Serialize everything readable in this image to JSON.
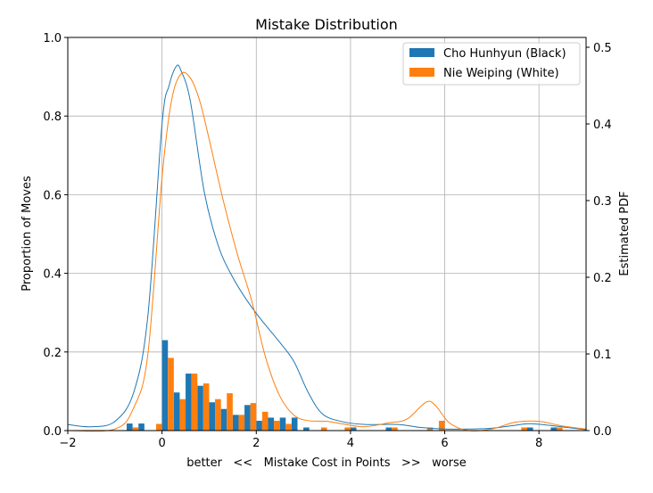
{
  "chart_data": {
    "type": "bar",
    "title": "Mistake Distribution",
    "xlabel": "better   <<   Mistake Cost in Points   >>   worse",
    "ylabel": "Proportion of Moves",
    "y2label": "Estimated PDF",
    "xlim": [
      -2,
      9
    ],
    "ylim": [
      0,
      1.0
    ],
    "y2lim": [
      0,
      0.5128
    ],
    "grid": true,
    "legend_position": "top-right",
    "x_ticks": [
      -2,
      0,
      2,
      4,
      6,
      8
    ],
    "y_ticks": [
      0.0,
      0.2,
      0.4,
      0.6,
      0.8,
      1.0
    ],
    "y2_ticks": [
      0.0,
      0.1,
      0.2,
      0.3,
      0.4,
      0.5
    ],
    "x_tick_labels": [
      "−2",
      "0",
      "2",
      "4",
      "6",
      "8"
    ],
    "y_tick_labels": [
      "0.0",
      "0.2",
      "0.4",
      "0.6",
      "0.8",
      "1.0"
    ],
    "y2_tick_labels": [
      "0.0",
      "0.1",
      "0.2",
      "0.3",
      "0.4",
      "0.5"
    ],
    "bin_width": 0.25,
    "series": [
      {
        "name": "Cho Hunhyun (Black)",
        "color": "#1f77b4",
        "bins": [
          [
            -0.75,
            0.018
          ],
          [
            -0.5,
            0.018
          ],
          [
            0.0,
            0.23
          ],
          [
            0.25,
            0.097
          ],
          [
            0.5,
            0.145
          ],
          [
            0.75,
            0.114
          ],
          [
            1.0,
            0.072
          ],
          [
            1.25,
            0.055
          ],
          [
            1.5,
            0.04
          ],
          [
            1.75,
            0.065
          ],
          [
            2.0,
            0.025
          ],
          [
            2.25,
            0.033
          ],
          [
            2.5,
            0.033
          ],
          [
            2.75,
            0.033
          ],
          [
            3.0,
            0.008
          ],
          [
            4.0,
            0.008
          ],
          [
            4.75,
            0.008
          ],
          [
            7.75,
            0.008
          ],
          [
            8.25,
            0.008
          ]
        ],
        "pdf": [
          [
            -2.0,
            0.008
          ],
          [
            -1.5,
            0.005
          ],
          [
            -1.0,
            0.012
          ],
          [
            -0.6,
            0.05
          ],
          [
            -0.3,
            0.15
          ],
          [
            0.0,
            0.4
          ],
          [
            0.15,
            0.45
          ],
          [
            0.3,
            0.475
          ],
          [
            0.4,
            0.47
          ],
          [
            0.6,
            0.43
          ],
          [
            0.9,
            0.31
          ],
          [
            1.2,
            0.24
          ],
          [
            1.5,
            0.2
          ],
          [
            1.8,
            0.17
          ],
          [
            2.1,
            0.145
          ],
          [
            2.5,
            0.115
          ],
          [
            2.8,
            0.09
          ],
          [
            3.1,
            0.05
          ],
          [
            3.4,
            0.022
          ],
          [
            3.8,
            0.012
          ],
          [
            4.3,
            0.008
          ],
          [
            5.0,
            0.008
          ],
          [
            5.5,
            0.004
          ],
          [
            6.0,
            0.002
          ],
          [
            6.5,
            0.002
          ],
          [
            7.0,
            0.003
          ],
          [
            7.5,
            0.007
          ],
          [
            7.8,
            0.009
          ],
          [
            8.2,
            0.007
          ],
          [
            9.0,
            0.001
          ]
        ]
      },
      {
        "name": "Nie Weiping (White)",
        "color": "#ff7f0e",
        "bins": [
          [
            -0.75,
            0.008
          ],
          [
            -0.25,
            0.017
          ],
          [
            0.0,
            0.185
          ],
          [
            0.25,
            0.08
          ],
          [
            0.5,
            0.145
          ],
          [
            0.75,
            0.12
          ],
          [
            1.0,
            0.08
          ],
          [
            1.25,
            0.095
          ],
          [
            1.5,
            0.04
          ],
          [
            1.75,
            0.07
          ],
          [
            2.0,
            0.048
          ],
          [
            2.25,
            0.025
          ],
          [
            2.5,
            0.017
          ],
          [
            3.25,
            0.008
          ],
          [
            3.75,
            0.008
          ],
          [
            4.75,
            0.008
          ],
          [
            5.5,
            0.008
          ],
          [
            5.75,
            0.025
          ],
          [
            7.5,
            0.008
          ],
          [
            8.25,
            0.008
          ]
        ],
        "pdf": [
          [
            -2.0,
            0.0
          ],
          [
            -1.0,
            0.002
          ],
          [
            -0.6,
            0.03
          ],
          [
            -0.3,
            0.1
          ],
          [
            0.0,
            0.33
          ],
          [
            0.2,
            0.43
          ],
          [
            0.4,
            0.465
          ],
          [
            0.6,
            0.46
          ],
          [
            0.8,
            0.43
          ],
          [
            1.0,
            0.38
          ],
          [
            1.3,
            0.3
          ],
          [
            1.6,
            0.23
          ],
          [
            1.9,
            0.17
          ],
          [
            2.2,
            0.095
          ],
          [
            2.5,
            0.045
          ],
          [
            2.8,
            0.02
          ],
          [
            3.1,
            0.013
          ],
          [
            3.5,
            0.012
          ],
          [
            3.9,
            0.008
          ],
          [
            4.3,
            0.005
          ],
          [
            4.8,
            0.01
          ],
          [
            5.2,
            0.015
          ],
          [
            5.6,
            0.037
          ],
          [
            5.8,
            0.033
          ],
          [
            6.1,
            0.01
          ],
          [
            6.5,
            0.0
          ],
          [
            7.0,
            0.002
          ],
          [
            7.5,
            0.011
          ],
          [
            8.0,
            0.012
          ],
          [
            8.5,
            0.006
          ],
          [
            9.0,
            0.002
          ]
        ]
      }
    ]
  }
}
